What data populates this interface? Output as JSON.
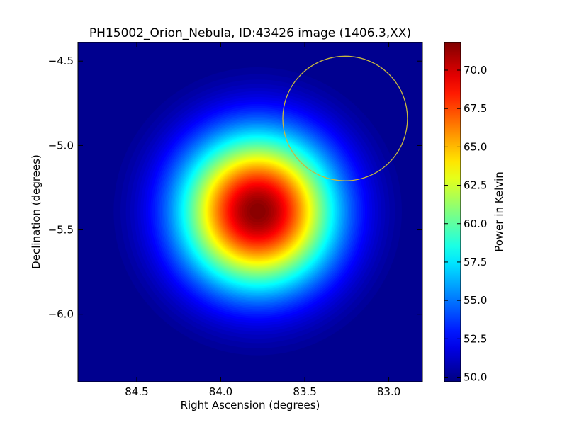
{
  "chart_data": {
    "type": "heatmap",
    "title": "PH15002_Orion_Nebula, ID:43426 image (1406.3,XX)",
    "xlabel": "Right Ascension (degrees)",
    "ylabel": "Declination (degrees)",
    "xlim": [
      84.85,
      82.8
    ],
    "ylim": [
      -6.4,
      -4.39
    ],
    "x_ticks": [
      84.5,
      84.0,
      83.5,
      83.0
    ],
    "x_tick_labels": [
      "84.5",
      "84.0",
      "83.5",
      "83.0"
    ],
    "y_ticks": [
      -4.5,
      -5.0,
      -5.5,
      -6.0
    ],
    "y_tick_labels": [
      "−4.5",
      "−5.0",
      "−5.5",
      "−6.0"
    ],
    "colormap": "jet",
    "colorbar": {
      "label": "Power in Kelvin",
      "vmin": 49.7,
      "vmax": 71.8,
      "ticks": [
        50.0,
        52.5,
        55.0,
        57.5,
        60.0,
        62.5,
        65.0,
        67.5,
        70.0
      ],
      "tick_labels": [
        "50.0",
        "52.5",
        "55.0",
        "57.5",
        "60.0",
        "62.5",
        "65.0",
        "67.5",
        "70.0"
      ]
    },
    "source": {
      "ra": 83.78,
      "dec": -5.39,
      "peak": 71.8,
      "baseline": 49.7,
      "fwhm_deg": 0.75
    },
    "aperture": {
      "ra": 83.26,
      "dec": -4.84,
      "radius_deg": 0.37,
      "color": "#c8b840"
    }
  }
}
